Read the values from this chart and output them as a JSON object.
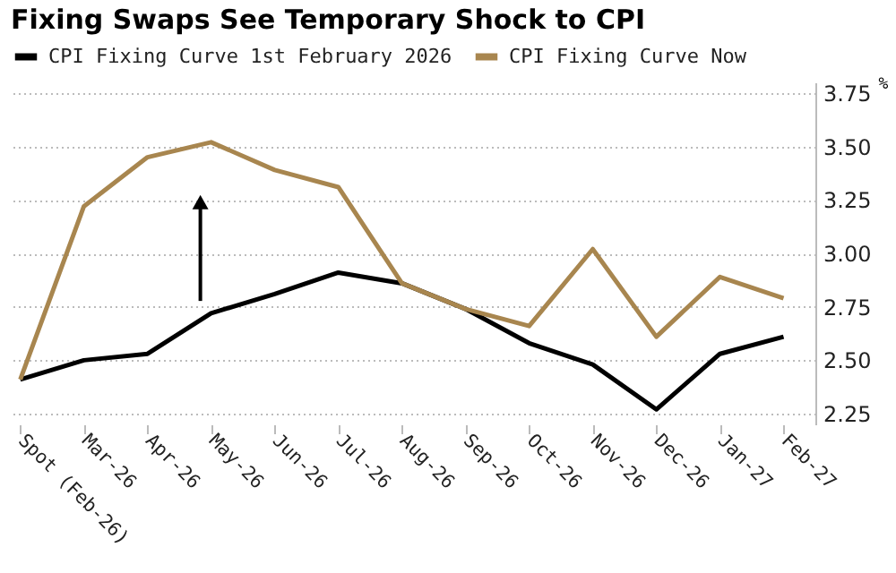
{
  "chart_data": {
    "type": "line",
    "title": "Fixing Swaps See Temporary Shock to CPI",
    "categories": [
      "Spot (Feb-26)",
      "Mar-26",
      "Apr-26",
      "May-26",
      "Jun-26",
      "Jul-26",
      "Aug-26",
      "Sep-26",
      "Oct-26",
      "Nov-26",
      "Dec-26",
      "Jan-27",
      "Feb-27"
    ],
    "series": [
      {
        "name": "CPI Fixing Curve 1st February 2026",
        "color": "#000000",
        "values": [
          2.41,
          2.5,
          2.53,
          2.72,
          2.81,
          2.91,
          2.86,
          2.74,
          2.58,
          2.48,
          2.27,
          2.53,
          2.61
        ]
      },
      {
        "name": "CPI Fixing Curve Now",
        "color": "#a8864f",
        "values": [
          2.41,
          3.22,
          3.45,
          3.52,
          3.39,
          3.31,
          2.86,
          2.74,
          2.66,
          3.02,
          2.61,
          2.89,
          2.79
        ]
      }
    ],
    "ylabel": "%",
    "ylim": [
      2.2,
      3.8
    ],
    "yticks": [
      2.25,
      {
        "value": 2.5,
        "label": "2.50"
      },
      2.75,
      {
        "value": 3,
        "label": "3.00"
      },
      3.25,
      {
        "value": 3.5,
        "label": "3.50"
      },
      3.75
    ],
    "grid": "y",
    "legend": "top",
    "marker": "none",
    "line_style": "solid"
  }
}
